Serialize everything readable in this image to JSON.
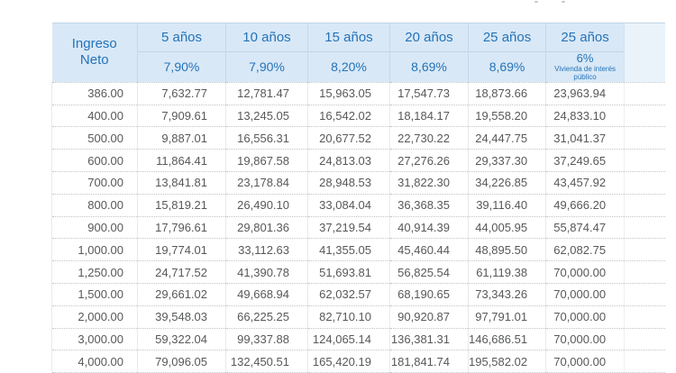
{
  "table": {
    "row_header_label": "Ingreso\nNeto",
    "columns": [
      {
        "term": "5 años",
        "rate": "7,90%"
      },
      {
        "term": "10 años",
        "rate": "7,90%"
      },
      {
        "term": "15 años",
        "rate": "8,20%"
      },
      {
        "term": "20 años",
        "rate": "8,69%"
      },
      {
        "term": "25 años",
        "rate": "8,69%"
      },
      {
        "term": "25 años",
        "rate": "6%",
        "rate_note": "Vivienda de interés público"
      }
    ],
    "rows": [
      {
        "income": "386.00",
        "values": [
          "7,632.77",
          "12,781.47",
          "15,963.05",
          "17,547.73",
          "18,873.66",
          "23,963.94"
        ]
      },
      {
        "income": "400.00",
        "values": [
          "7,909.61",
          "13,245.05",
          "16,542.02",
          "18,184.17",
          "19,558.20",
          "24,833.10"
        ]
      },
      {
        "income": "500.00",
        "values": [
          "9,887.01",
          "16,556.31",
          "20,677.52",
          "22,730.22",
          "24,447.75",
          "31,041.37"
        ]
      },
      {
        "income": "600.00",
        "values": [
          "11,864.41",
          "19,867.58",
          "24,813.03",
          "27,276.26",
          "29,337.30",
          "37,249.65"
        ]
      },
      {
        "income": "700.00",
        "values": [
          "13,841.81",
          "23,178.84",
          "28,948.53",
          "31,822.30",
          "34,226.85",
          "43,457.92"
        ]
      },
      {
        "income": "800.00",
        "values": [
          "15,819.21",
          "26,490.10",
          "33,084.04",
          "36,368.35",
          "39,116.40",
          "49,666.20"
        ]
      },
      {
        "income": "900.00",
        "values": [
          "17,796.61",
          "29,801.36",
          "37,219.54",
          "40,914.39",
          "44,005.95",
          "55,874.47"
        ]
      },
      {
        "income": "1,000.00",
        "values": [
          "19,774.01",
          "33,112.63",
          "41,355.05",
          "45,460.44",
          "48,895.50",
          "62,082.75"
        ]
      },
      {
        "income": "1,250.00",
        "values": [
          "24,717.52",
          "41,390.78",
          "51,693.81",
          "56,825.54",
          "61,119.38",
          "70,000.00"
        ]
      },
      {
        "income": "1,500.00",
        "values": [
          "29,661.02",
          "49,668.94",
          "62,032.57",
          "68,190.65",
          "73,343.26",
          "70,000.00"
        ]
      },
      {
        "income": "2,000.00",
        "values": [
          "39,548.03",
          "66,225.25",
          "82,710.10",
          "90,920.87",
          "97,791.01",
          "70,000.00"
        ]
      },
      {
        "income": "3,000.00",
        "values": [
          "59,322.04",
          "99,337.88",
          "124,065.14",
          "136,381.31",
          "146,686.51",
          "70,000.00"
        ]
      },
      {
        "income": "4,000.00",
        "values": [
          "79,096.05",
          "132,450.51",
          "165,420.19",
          "181,841.74",
          "195,582.02",
          "70,000.00"
        ]
      }
    ]
  },
  "colors": {
    "header_bg": "#d9e8f6",
    "header_partial_bg": "#eaf3fa",
    "header_text": "#2373b9",
    "body_text": "#57585a",
    "row_border": "#c0c4c8"
  }
}
